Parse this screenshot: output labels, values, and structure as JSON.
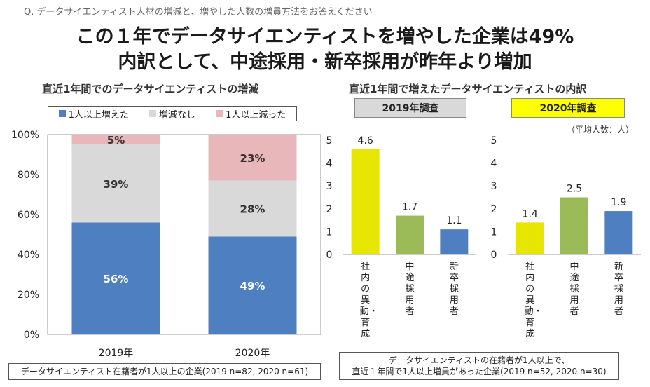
{
  "question": "Q. データサイエンティスト人材の増減と、増やした人数の増員方法をお答えください。",
  "headline": {
    "line1": "この１年でデータサイエンティストを増やした企業は49%",
    "line2": "内訳として、中途採用・新卒採用が昨年より増加"
  },
  "left_section": {
    "title": "直近1年間でのデータサイエンティストの増減",
    "note": "データサイエンティスト在籍者が1人以上の企業(2019 n=82, 2020 n=61)"
  },
  "right_section": {
    "title": "直近1年間で増えたデータサイエンティストの内訳",
    "survey_2019": "2019年調査",
    "survey_2020": "2020年調査",
    "unit": "（平均人数：人）",
    "note_line1": "データサイエンティストの在籍者が1人以上で、",
    "note_line2": "直近１年間で1人以上増員があった企業(2019 n=52, 2020 n=30)"
  },
  "colors": {
    "blue": "#4e7fc0",
    "gray": "#d9d9d9",
    "pink": "#e8b7b9",
    "yellow": "#e6e600",
    "green": "#9bbb59",
    "highlight": "#ffff00",
    "label_gray": "#d9d9d9"
  },
  "chart_data": [
    {
      "type": "bar",
      "stacked": true,
      "categories": [
        "2019年",
        "2020年"
      ],
      "series": [
        {
          "name": "1人以上増えた",
          "values": [
            56,
            49
          ],
          "labels": [
            "56%",
            "49%"
          ]
        },
        {
          "name": "増減なし",
          "values": [
            39,
            28
          ],
          "labels": [
            "39%",
            "28%"
          ]
        },
        {
          "name": "1人以上減った",
          "values": [
            5,
            23
          ],
          "labels": [
            "5%",
            "23%"
          ]
        }
      ],
      "yticks": [
        "0%",
        "20%",
        "40%",
        "60%",
        "80%",
        "100%"
      ],
      "ylim": [
        0,
        100
      ],
      "legend": "top"
    },
    {
      "type": "bar",
      "title": "2019年調査",
      "categories": [
        "社内の異動・育成",
        "中途採用者",
        "新卒採用者"
      ],
      "values": [
        4.6,
        1.7,
        1.1
      ],
      "value_labels": [
        "4.6",
        "1.7",
        "1.1"
      ],
      "yticks": [
        "0",
        "1",
        "2",
        "3",
        "4",
        "5"
      ],
      "ylim": [
        0,
        5
      ]
    },
    {
      "type": "bar",
      "title": "2020年調査",
      "categories": [
        "社内の異動・育成",
        "中途採用者",
        "新卒採用者"
      ],
      "values": [
        1.4,
        2.5,
        1.9
      ],
      "value_labels": [
        "1.4",
        "2.5",
        "1.9"
      ],
      "yticks": [
        "0",
        "1",
        "2",
        "3",
        "4",
        "5"
      ],
      "ylim": [
        0,
        5
      ]
    }
  ]
}
